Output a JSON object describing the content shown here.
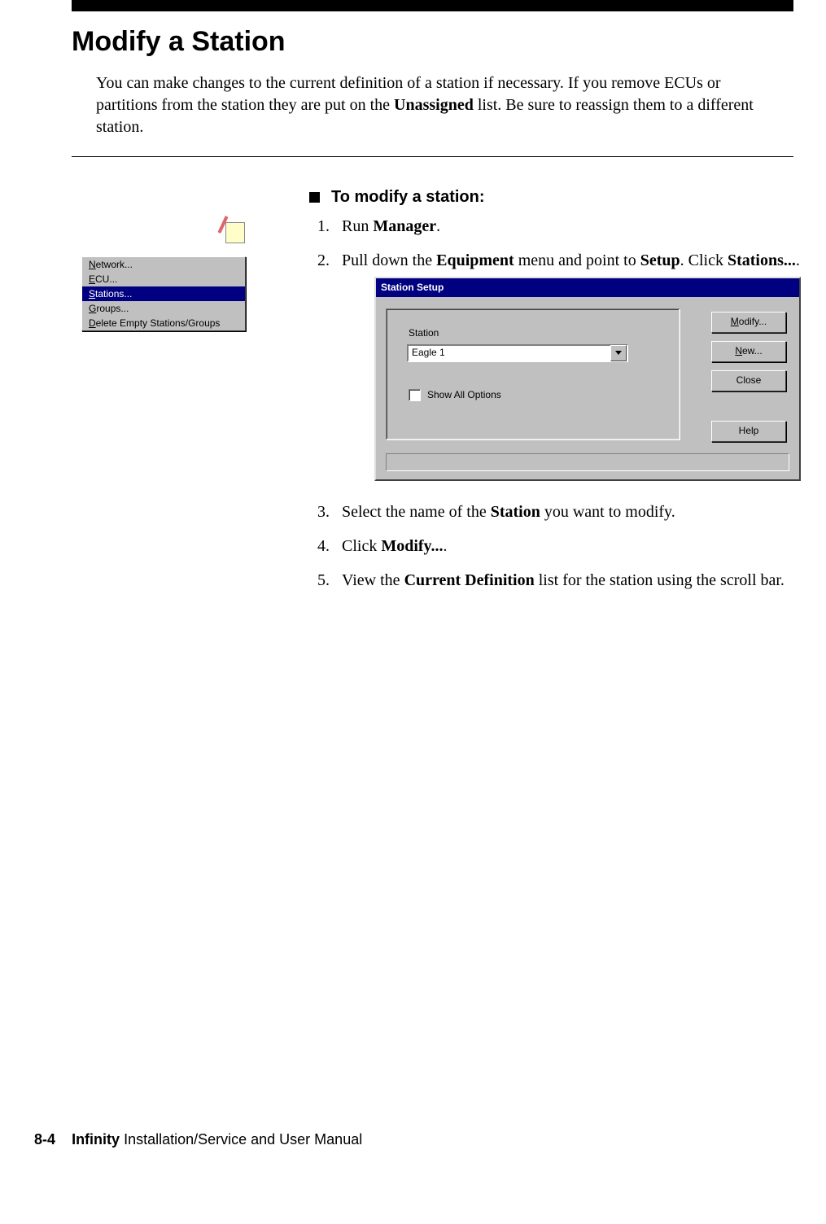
{
  "header": {
    "title": "Modify a Station",
    "intro_pre": "You can make changes to the current definition of a station if necessary. If you remove ECUs or partitions from the station they are put on the ",
    "intro_bold": "Unassigned",
    "intro_post": " list. Be sure to reassign them to a different station."
  },
  "context_menu": {
    "items": [
      {
        "pre": "",
        "ul": "N",
        "post": "etwork...",
        "selected": false
      },
      {
        "pre": "",
        "ul": "E",
        "post": "CU...",
        "selected": false
      },
      {
        "pre": "",
        "ul": "S",
        "post": "tations...",
        "selected": true
      },
      {
        "pre": "",
        "ul": "G",
        "post": "roups...",
        "selected": false
      },
      {
        "pre": "",
        "ul": "D",
        "post": "elete Empty Stations/Groups",
        "selected": false
      }
    ],
    "colors": {
      "bg": "#c0c0c0",
      "sel_bg": "#000080",
      "sel_fg": "#ffffff"
    }
  },
  "procedure": {
    "heading": "To modify a station:",
    "step1": {
      "pre": "Run ",
      "b1": "Manager",
      "post": "."
    },
    "step2": {
      "pre": "Pull down the ",
      "b1": "Equipment",
      "mid": " menu and point to ",
      "b2": "Setup",
      "mid2": ". Click ",
      "b3": "Stations...",
      "post": "."
    },
    "step3": {
      "pre": "Select the name of the ",
      "b1": "Station",
      "post": " you want to modify."
    },
    "step4": {
      "pre": "Click ",
      "b1": "Modify...",
      "post": "."
    },
    "step5": {
      "pre": "View the ",
      "b1": "Current Definition",
      "post": " list for the station using the scroll bar."
    }
  },
  "dialog": {
    "title": "Station Setup",
    "station_label": "Station",
    "station_value": "Eagle 1",
    "show_all_pre": "Show ",
    "show_all_ul": "A",
    "show_all_post": "ll Options",
    "buttons": {
      "modify": {
        "ul": "M",
        "rest": "odify..."
      },
      "new": {
        "ul": "N",
        "rest": "ew..."
      },
      "close": {
        "text": "Close"
      },
      "help": {
        "text": "Help"
      }
    },
    "colors": {
      "chrome": "#c0c0c0",
      "title_bg": "#000080",
      "title_fg": "#ffffff",
      "field_bg": "#ffffff"
    }
  },
  "footer": {
    "page": "8-4",
    "product": "Infinity",
    "rest": " Installation/Service and User Manual"
  }
}
